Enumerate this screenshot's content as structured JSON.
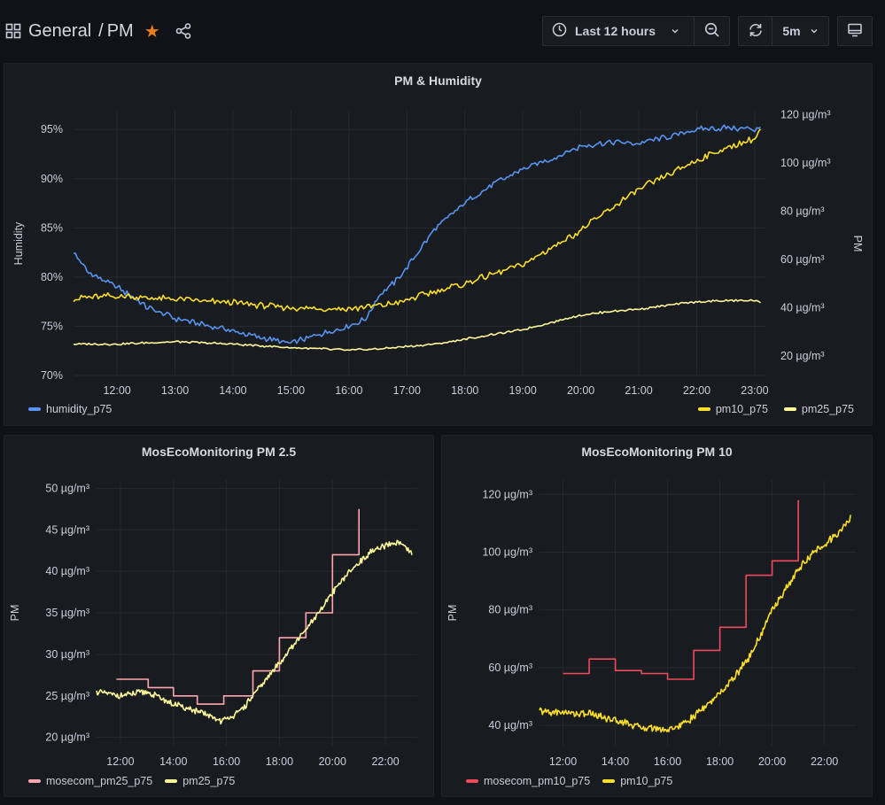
{
  "header": {
    "breadcrumb_root": "General",
    "breadcrumb_sep": "/",
    "breadcrumb_page": "PM",
    "time_range": "Last 12 hours",
    "refresh_interval": "5m"
  },
  "colors": {
    "humidity": "#5794f2",
    "pm10": "#fade2a",
    "pm25": "#fff899",
    "mosecom_pm25": "#ffa6b0",
    "mosecom_pm10": "#f2495c"
  },
  "chart_data": [
    {
      "type": "line",
      "title": "PM & Humidity",
      "x_ticks": [
        "12:00",
        "13:00",
        "14:00",
        "15:00",
        "16:00",
        "17:00",
        "18:00",
        "19:00",
        "20:00",
        "21:00",
        "22:00",
        "23:00"
      ],
      "xlim": [
        11.25,
        23.2
      ],
      "left_axis": {
        "label": "Humidity",
        "ylim": [
          70,
          97
        ],
        "ticks": [
          "70%",
          "75%",
          "80%",
          "85%",
          "90%",
          "95%"
        ],
        "tick_values": [
          70,
          75,
          80,
          85,
          90,
          95
        ]
      },
      "right_axis": {
        "label": "PM",
        "ylim": [
          12,
          122
        ],
        "ticks": [
          "20 µg/m³",
          "40 µg/m³",
          "60 µg/m³",
          "80 µg/m³",
          "100 µg/m³",
          "120 µg/m³"
        ],
        "tick_values": [
          20,
          40,
          60,
          80,
          100,
          120
        ]
      },
      "series": [
        {
          "name": "humidity_p75",
          "axis": "left",
          "color": "humidity",
          "x": [
            11.25,
            11.5,
            12,
            12.5,
            13,
            13.5,
            14,
            14.5,
            15,
            15.5,
            16,
            16.3,
            16.5,
            16.8,
            17,
            17.5,
            18,
            18.5,
            19,
            19.5,
            20,
            20.5,
            21,
            21.5,
            22,
            22.5,
            23,
            23.1
          ],
          "y": [
            82.5,
            80.5,
            79,
            77,
            75.8,
            75.2,
            74.5,
            73.8,
            73.3,
            74.2,
            75.0,
            75.8,
            78,
            79.5,
            81,
            85,
            87.5,
            89.5,
            91,
            92,
            93.3,
            93.7,
            93.6,
            94.2,
            95,
            95.2,
            95.0,
            95.4
          ]
        },
        {
          "name": "pm10_p75",
          "axis": "right",
          "legend": "right",
          "color": "pm10",
          "x": [
            11.25,
            12,
            13,
            14,
            15,
            16,
            16.5,
            17,
            17.5,
            18,
            18.5,
            19,
            19.5,
            20,
            20.5,
            21,
            21.5,
            22,
            22.5,
            23,
            23.1
          ],
          "y": [
            44,
            45,
            43.5,
            42,
            40,
            39.5,
            41,
            43,
            47,
            50,
            54,
            58,
            65,
            72,
            81,
            89,
            95,
            101,
            106,
            110,
            114
          ]
        },
        {
          "name": "pm25_p75",
          "axis": "right",
          "legend": "right",
          "color": "pm25",
          "x": [
            11.25,
            12,
            13,
            14,
            15,
            16,
            16.5,
            17,
            17.5,
            18,
            18.5,
            19,
            19.5,
            20,
            20.5,
            21,
            21.5,
            22,
            22.5,
            23,
            23.1
          ],
          "y": [
            25,
            25,
            26,
            25,
            23.5,
            22.5,
            23,
            24,
            25,
            27,
            29,
            31,
            34,
            37,
            38.5,
            39.5,
            41,
            42.5,
            43,
            43,
            42
          ]
        }
      ]
    },
    {
      "type": "line",
      "title": "MosEcoMonitoring PM 2.5",
      "x_ticks": [
        "12:00",
        "14:00",
        "16:00",
        "18:00",
        "20:00",
        "22:00"
      ],
      "xlim": [
        11.1,
        23.2
      ],
      "y_axis": {
        "label": "PM",
        "ylim": [
          19,
          51
        ],
        "ticks": [
          "20 µg/m³",
          "25 µg/m³",
          "30 µg/m³",
          "35 µg/m³",
          "40 µg/m³",
          "45 µg/m³",
          "50 µg/m³"
        ],
        "tick_values": [
          20,
          25,
          30,
          35,
          40,
          45,
          50
        ]
      },
      "series": [
        {
          "name": "mosecom_pm25_p75",
          "color": "mosecom_pm25",
          "step": true,
          "x": [
            11.85,
            12.9,
            13.05,
            14.0,
            14.9,
            15.9,
            17.0,
            18.0,
            19.0,
            20.0,
            21.0
          ],
          "y": [
            27,
            27,
            26,
            25,
            24,
            25,
            28,
            32,
            35,
            42,
            47.5
          ]
        },
        {
          "name": "pm25_p75",
          "color": "pm25",
          "x": [
            11.1,
            12,
            13,
            14,
            15,
            15.8,
            16.5,
            17,
            17.5,
            18,
            18.5,
            19,
            19.5,
            20,
            20.5,
            21,
            21.5,
            22,
            22.5,
            23
          ],
          "y": [
            25.5,
            25,
            25.5,
            24,
            23,
            22,
            23,
            25,
            27,
            29,
            31,
            33,
            35,
            37.5,
            39.5,
            41,
            42.5,
            43,
            43.5,
            42
          ]
        }
      ]
    },
    {
      "type": "line",
      "title": "MosEcoMonitoring PM 10",
      "x_ticks": [
        "12:00",
        "14:00",
        "16:00",
        "18:00",
        "20:00",
        "22:00"
      ],
      "xlim": [
        11.1,
        23.2
      ],
      "y_axis": {
        "label": "PM",
        "ylim": [
          33,
          125
        ],
        "ticks": [
          "40 µg/m³",
          "60 µg/m³",
          "80 µg/m³",
          "100 µg/m³",
          "120 µg/m³"
        ],
        "tick_values": [
          40,
          60,
          80,
          100,
          120
        ]
      },
      "series": [
        {
          "name": "mosecom_pm10_p75",
          "color": "mosecom_pm10",
          "step": true,
          "x": [
            12.0,
            13.0,
            14.0,
            15.0,
            16.0,
            17.0,
            18.0,
            19.0,
            20.0,
            21.0
          ],
          "y": [
            58,
            63,
            59,
            58,
            56,
            66,
            74,
            92,
            97,
            118
          ]
        },
        {
          "name": "pm10_p75",
          "color": "pm10",
          "x": [
            11.1,
            12,
            13,
            14,
            15,
            16,
            16.5,
            17,
            17.5,
            18,
            18.5,
            19,
            19.5,
            20,
            20.5,
            21,
            21.5,
            22,
            22.5,
            23
          ],
          "y": [
            45,
            44.5,
            44,
            42,
            39.5,
            38.5,
            40,
            43,
            47,
            51,
            56,
            62,
            70,
            80,
            87,
            94,
            99,
            103,
            106,
            112
          ]
        }
      ]
    }
  ]
}
